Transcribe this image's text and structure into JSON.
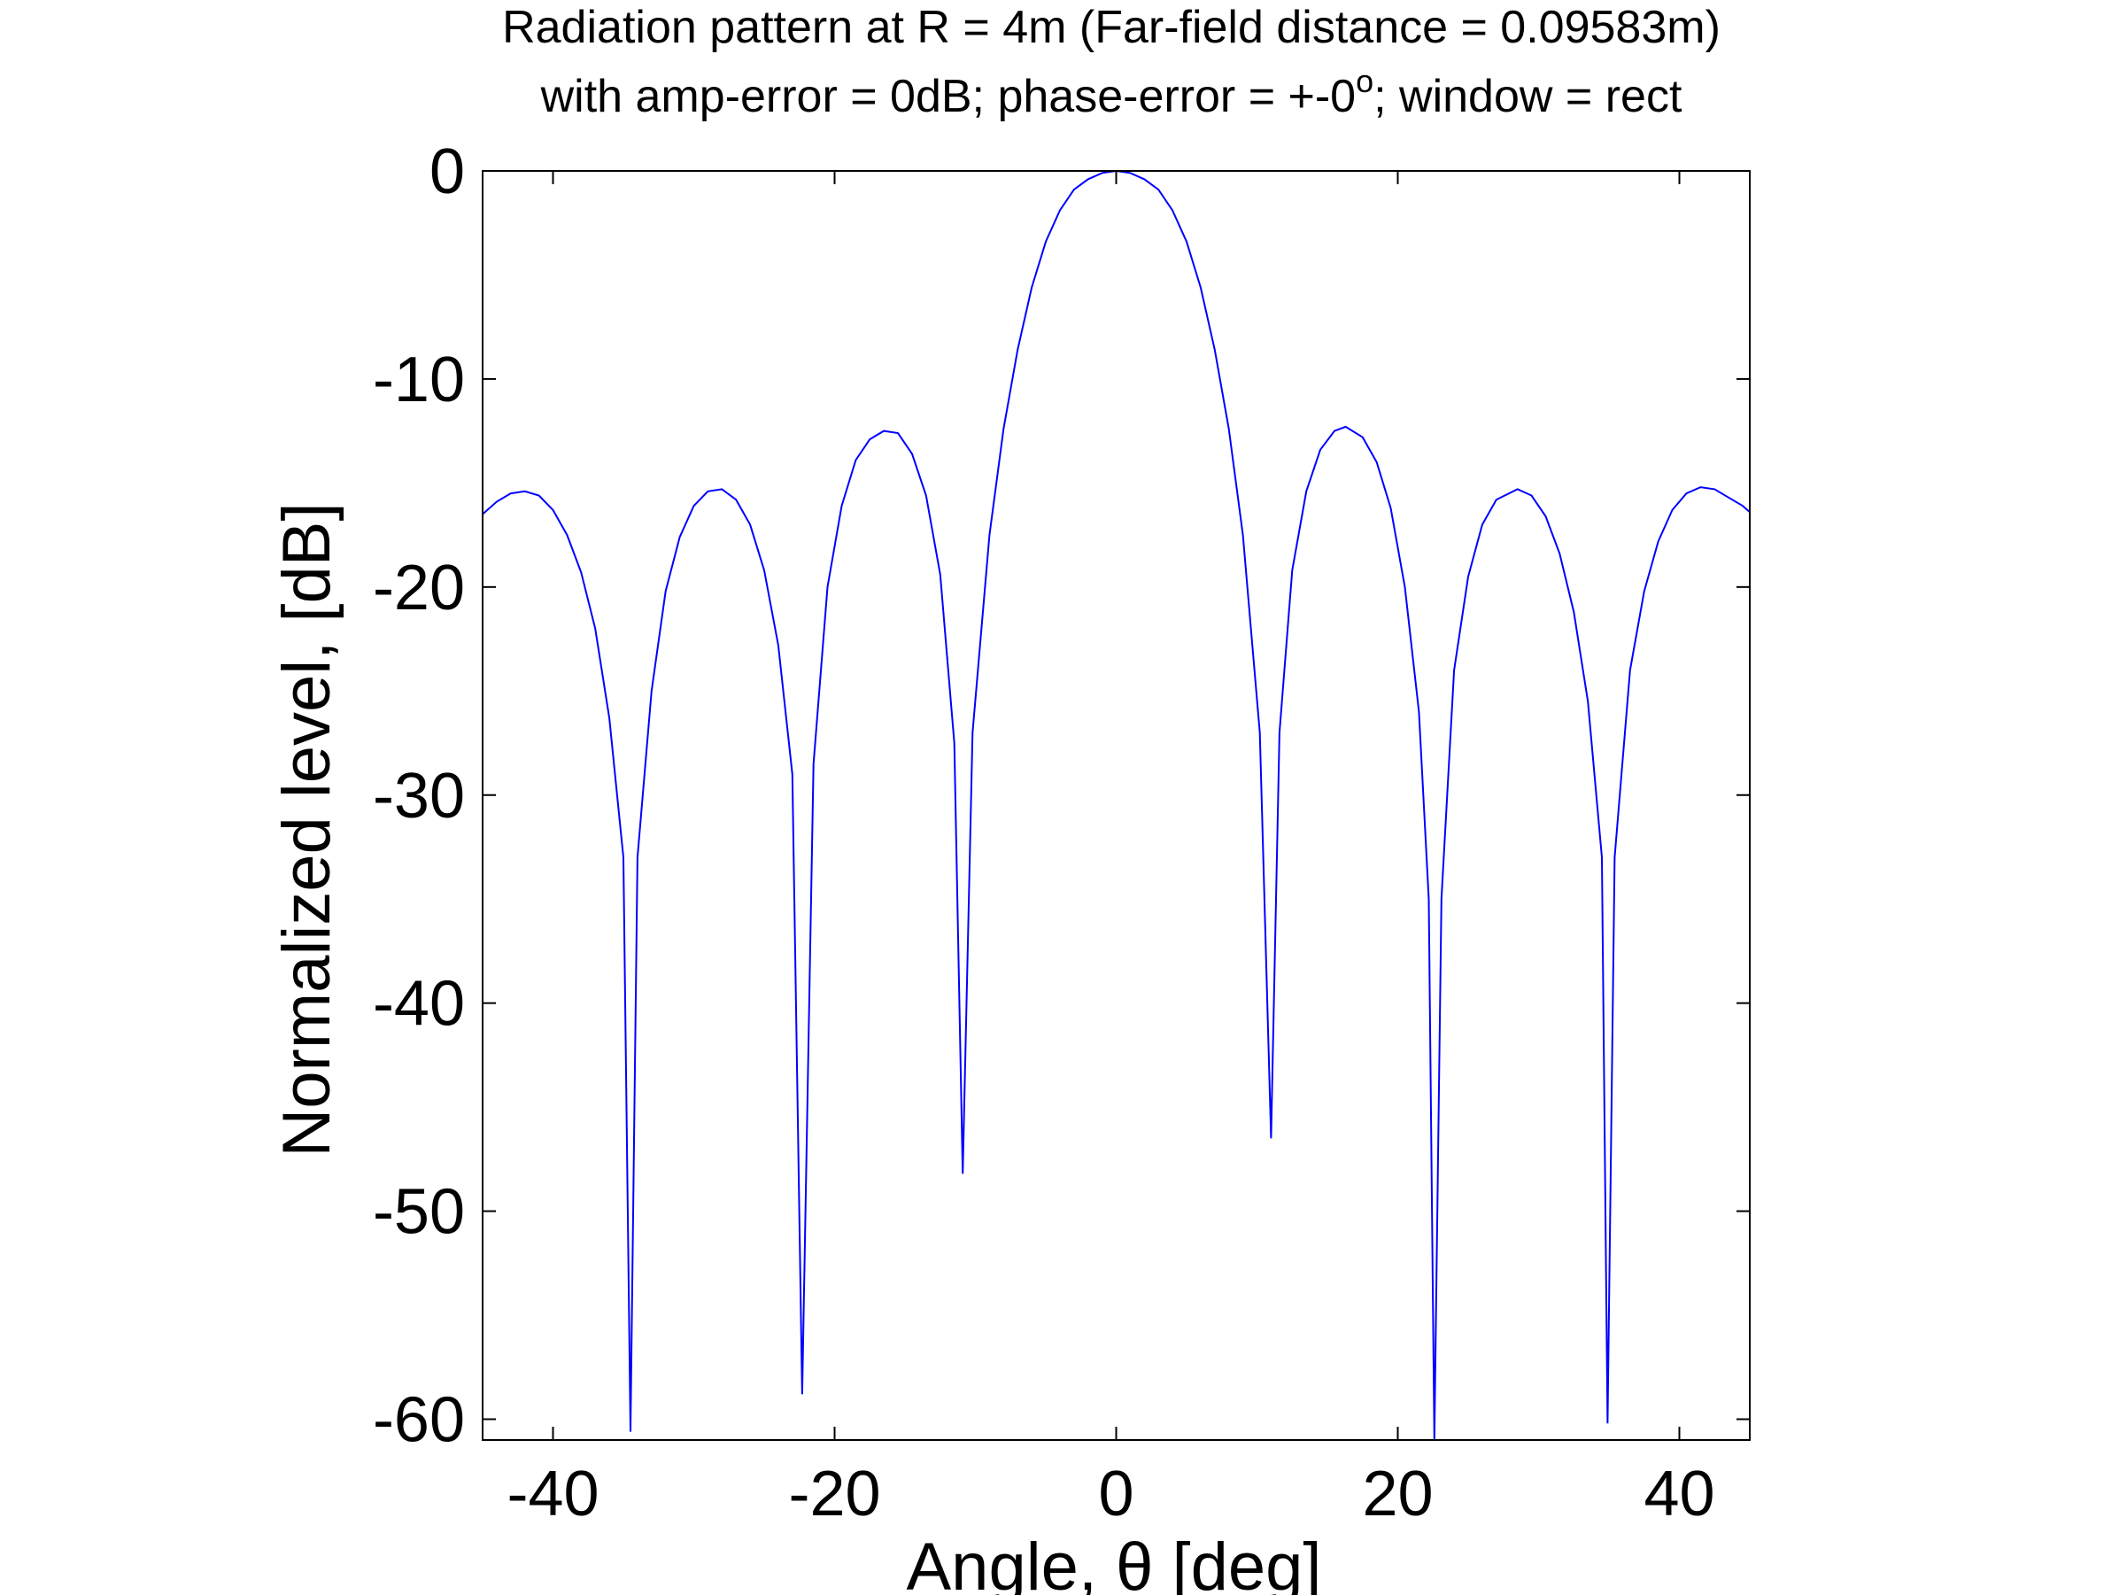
{
  "chart_data": {
    "type": "line",
    "title_line1": "Radiation pattern at R = 4m (Far-field distance = 0.09583m)",
    "title_line2_pre": "with amp-error = 0dB; phase-error = +-0",
    "title_line2_sup": "o",
    "title_line2_post": "; window = rect",
    "xlabel": "Angle, θ [deg]",
    "ylabel": "Normalized level, [dB]",
    "xlim": [
      -45,
      45
    ],
    "ylim": [
      -61,
      0
    ],
    "xticks": [
      -40,
      -20,
      0,
      20,
      40
    ],
    "yticks": [
      0,
      -10,
      -20,
      -30,
      -40,
      -50,
      -60
    ],
    "xtick_labels": [
      "-40",
      "-20",
      "0",
      "20",
      "40"
    ],
    "ytick_labels": [
      "0",
      "-10",
      "-20",
      "-30",
      "-40",
      "-50",
      "-60"
    ],
    "grid": false,
    "series": [
      {
        "color": "#0000ff",
        "points": [
          [
            -45,
            -16.5
          ],
          [
            -44,
            -15.9
          ],
          [
            -43,
            -15.5
          ],
          [
            -42,
            -15.4
          ],
          [
            -41,
            -15.6
          ],
          [
            -40,
            -16.3
          ],
          [
            -39,
            -17.5
          ],
          [
            -38,
            -19.3
          ],
          [
            -37,
            -22.0
          ],
          [
            -36,
            -26.3
          ],
          [
            -35,
            -33.0
          ],
          [
            -34.5,
            -60.6
          ],
          [
            -34,
            -33.0
          ],
          [
            -33,
            -25.0
          ],
          [
            -32,
            -20.2
          ],
          [
            -31,
            -17.6
          ],
          [
            -30,
            -16.1
          ],
          [
            -29,
            -15.4
          ],
          [
            -28,
            -15.3
          ],
          [
            -27,
            -15.8
          ],
          [
            -26,
            -17.0
          ],
          [
            -25,
            -19.2
          ],
          [
            -24,
            -22.8
          ],
          [
            -23,
            -29.0
          ],
          [
            -22.3,
            -58.8
          ],
          [
            -21.5,
            -28.5
          ],
          [
            -20.5,
            -20.0
          ],
          [
            -19.5,
            -16.1
          ],
          [
            -18.5,
            -13.9
          ],
          [
            -17.5,
            -12.9
          ],
          [
            -16.5,
            -12.5
          ],
          [
            -15.5,
            -12.6
          ],
          [
            -14.5,
            -13.6
          ],
          [
            -13.5,
            -15.6
          ],
          [
            -12.5,
            -19.4
          ],
          [
            -11.5,
            -27.5
          ],
          [
            -10.9,
            -48.2
          ],
          [
            -10.2,
            -27.0
          ],
          [
            -9,
            -17.5
          ],
          [
            -8,
            -12.4
          ],
          [
            -7,
            -8.6
          ],
          [
            -6,
            -5.6
          ],
          [
            -5,
            -3.4
          ],
          [
            -4,
            -1.9
          ],
          [
            -3,
            -0.9
          ],
          [
            -2,
            -0.4
          ],
          [
            -1,
            -0.1
          ],
          [
            0,
            0
          ],
          [
            1,
            -0.1
          ],
          [
            2,
            -0.4
          ],
          [
            3,
            -0.9
          ],
          [
            4,
            -1.9
          ],
          [
            5,
            -3.4
          ],
          [
            6,
            -5.6
          ],
          [
            7,
            -8.6
          ],
          [
            8,
            -12.4
          ],
          [
            9,
            -17.5
          ],
          [
            10.2,
            -27.0
          ],
          [
            11,
            -46.5
          ],
          [
            11.6,
            -27.0
          ],
          [
            12.5,
            -19.2
          ],
          [
            13.5,
            -15.4
          ],
          [
            14.5,
            -13.4
          ],
          [
            15.5,
            -12.5
          ],
          [
            16.3,
            -12.3
          ],
          [
            17.5,
            -12.8
          ],
          [
            18.5,
            -14.0
          ],
          [
            19.5,
            -16.2
          ],
          [
            20.5,
            -20.0
          ],
          [
            21.5,
            -26.0
          ],
          [
            22.2,
            -35.0
          ],
          [
            22.6,
            -61.0
          ],
          [
            23.1,
            -35.0
          ],
          [
            24,
            -24.0
          ],
          [
            25,
            -19.5
          ],
          [
            26,
            -17.0
          ],
          [
            27,
            -15.8
          ],
          [
            28.5,
            -15.3
          ],
          [
            29.5,
            -15.6
          ],
          [
            30.5,
            -16.6
          ],
          [
            31.5,
            -18.4
          ],
          [
            32.5,
            -21.2
          ],
          [
            33.5,
            -25.5
          ],
          [
            34.5,
            -33.0
          ],
          [
            34.9,
            -60.2
          ],
          [
            35.4,
            -33.0
          ],
          [
            36.5,
            -24.0
          ],
          [
            37.5,
            -20.2
          ],
          [
            38.5,
            -17.8
          ],
          [
            39.5,
            -16.3
          ],
          [
            40.5,
            -15.5
          ],
          [
            41.5,
            -15.2
          ],
          [
            42.5,
            -15.3
          ],
          [
            43.5,
            -15.7
          ],
          [
            44.5,
            -16.1
          ],
          [
            45,
            -16.4
          ]
        ]
      }
    ]
  }
}
